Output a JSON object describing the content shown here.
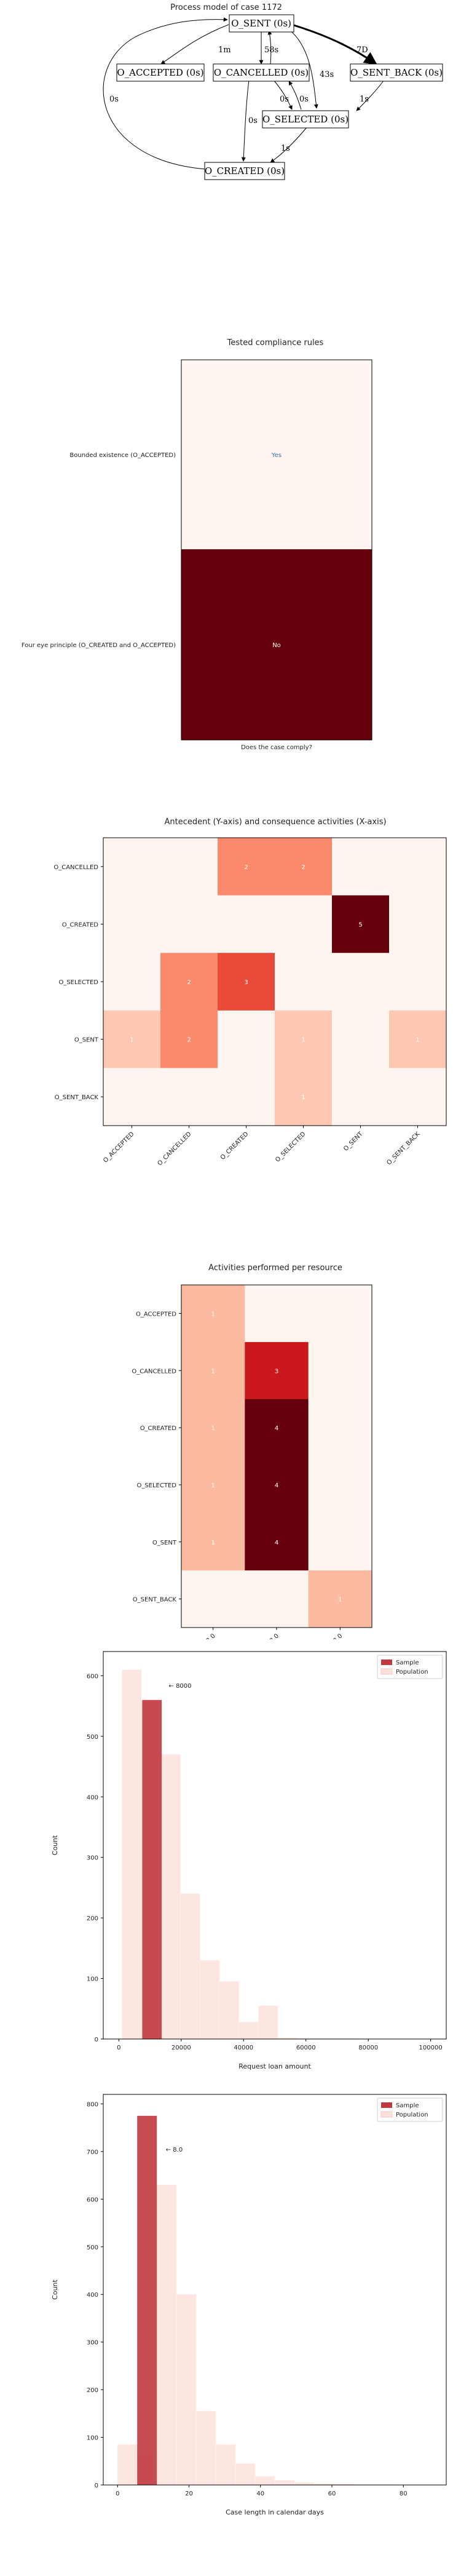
{
  "chart_data": [
    {
      "type": "diagram",
      "title": "Process model of case 1172",
      "nodes": [
        {
          "id": "sent",
          "label": "O_SENT (0s)"
        },
        {
          "id": "accepted",
          "label": "O_ACCEPTED (0s)"
        },
        {
          "id": "cancelled",
          "label": "O_CANCELLED (0s)"
        },
        {
          "id": "sent_back",
          "label": "O_SENT_BACK (0s)"
        },
        {
          "id": "selected",
          "label": "O_SELECTED (0s)"
        },
        {
          "id": "created",
          "label": "O_CREATED (0s)"
        }
      ],
      "edges": [
        {
          "from": "sent",
          "to": "accepted",
          "label": "1m"
        },
        {
          "from": "sent",
          "to": "cancelled",
          "label": "58s"
        },
        {
          "from": "sent",
          "to": "sent_back",
          "label": "7D"
        },
        {
          "from": "sent",
          "to": "selected",
          "label": "43s"
        },
        {
          "from": "cancelled",
          "to": "sent",
          "label": ""
        },
        {
          "from": "cancelled",
          "to": "created",
          "label": "0s"
        },
        {
          "from": "cancelled",
          "to": "selected",
          "label": "0s"
        },
        {
          "from": "selected",
          "to": "cancelled",
          "label": "0s"
        },
        {
          "from": "sent_back",
          "to": "selected",
          "label": "1s"
        },
        {
          "from": "selected",
          "to": "created",
          "label": "1s"
        },
        {
          "from": "created",
          "to": "sent",
          "label": "0s"
        }
      ]
    },
    {
      "type": "heatmap",
      "title": "Tested compliance rules",
      "xlabel": "Does the case comply?",
      "rows": [
        "Bounded existence (O_ACCEPTED)",
        "Four eye principle (O_CREATED and O_ACCEPTED)"
      ],
      "cells": [
        "Yes",
        "No"
      ],
      "colors": [
        "#fff5f0",
        "#67000d"
      ]
    },
    {
      "type": "heatmap",
      "title": "Antecedent (Y-axis) and consequence activities (X-axis)",
      "rows": [
        "O_CANCELLED",
        "O_CREATED",
        "O_SELECTED",
        "O_SENT",
        "O_SENT_BACK"
      ],
      "columns": [
        "O_ACCEPTED",
        "O_CANCELLED",
        "O_CREATED",
        "O_SELECTED",
        "O_SENT",
        "O_SENT_BACK"
      ],
      "values": [
        [
          0,
          0,
          2,
          2,
          0,
          0
        ],
        [
          0,
          0,
          0,
          0,
          5,
          0
        ],
        [
          0,
          2,
          3,
          0,
          0,
          0
        ],
        [
          1,
          2,
          0,
          1,
          0,
          1
        ],
        [
          0,
          0,
          0,
          1,
          0,
          0
        ]
      ],
      "vmax": 5
    },
    {
      "type": "heatmap",
      "title": "Activities performed per resource",
      "rows": [
        "O_ACCEPTED",
        "O_CANCELLED",
        "O_CREATED",
        "O_SELECTED",
        "O_SENT",
        "O_SENT_BACK"
      ],
      "columns": [
        "11003.0",
        "11253.0",
        "10903.0"
      ],
      "values": [
        [
          1,
          0,
          0
        ],
        [
          1,
          3,
          0
        ],
        [
          1,
          4,
          0
        ],
        [
          1,
          4,
          0
        ],
        [
          1,
          4,
          0
        ],
        [
          0,
          0,
          1
        ]
      ],
      "vmax": 4
    },
    {
      "type": "bar",
      "xlabel": "Request loan amount",
      "ylabel": "Count",
      "xlim": [
        -5000,
        105000
      ],
      "ylim": [
        0,
        640
      ],
      "xticks": [
        0,
        20000,
        40000,
        60000,
        80000,
        100000
      ],
      "yticks": [
        0,
        100,
        200,
        300,
        400,
        500,
        600
      ],
      "legend": [
        "Sample",
        "Population"
      ],
      "legend_position": "top-right",
      "annotation": "← 8000",
      "annotation_x": 16000,
      "annotation_y": 580,
      "sample": {
        "x0": 7500,
        "x1": 13750,
        "value": 560
      },
      "population": {
        "bin_width": 6250,
        "start": 1000,
        "values": [
          610,
          560,
          470,
          240,
          130,
          95,
          28,
          55,
          2,
          1,
          1,
          1,
          0,
          0,
          0,
          0
        ]
      }
    },
    {
      "type": "bar",
      "xlabel": "Case length in calendar days",
      "ylabel": "Count",
      "xlim": [
        -4,
        92
      ],
      "ylim": [
        0,
        820
      ],
      "xticks": [
        0,
        20,
        40,
        60,
        80
      ],
      "yticks": [
        0,
        100,
        200,
        300,
        400,
        500,
        600,
        700,
        800
      ],
      "legend": [
        "Sample",
        "Population"
      ],
      "legend_position": "top-right",
      "annotation": "← 8.0",
      "annotation_x": 13.5,
      "annotation_y": 700,
      "sample": {
        "x0": 5.5,
        "x1": 11,
        "value": 775
      },
      "population": {
        "bin_width": 5.5,
        "start": 0,
        "values": [
          85,
          70,
          630,
          400,
          155,
          85,
          45,
          18,
          10,
          5,
          3,
          2,
          1,
          1,
          0,
          0
        ]
      }
    }
  ]
}
